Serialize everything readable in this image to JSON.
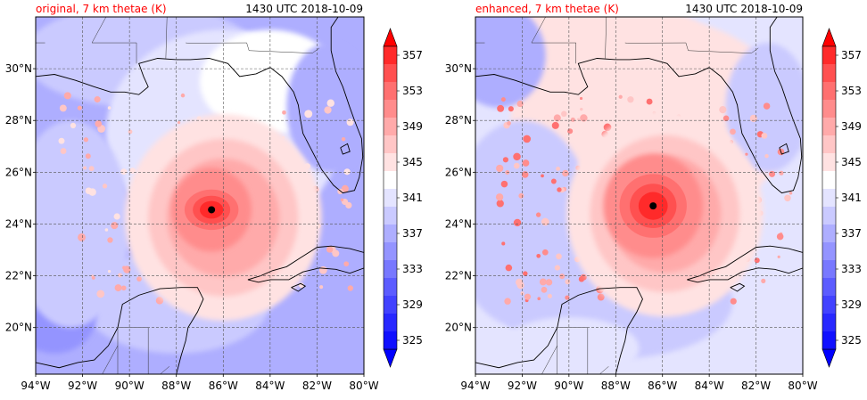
{
  "panels": [
    {
      "title_left": "original, 7 km thetae (K)",
      "title_right": "1430 UTC 2018-10-09",
      "storm_center": {
        "lon": -86.5,
        "lat": 24.55
      },
      "core_scale": 1.0,
      "core_shape": "elongated"
    },
    {
      "title_left": "enhanced, 7 km thetae (K)",
      "title_right": "1430 UTC 2018-10-09",
      "storm_center": {
        "lon": -86.4,
        "lat": 24.7
      },
      "core_scale": 1.25,
      "core_shape": "round"
    }
  ],
  "lon_ticks": [
    {
      "value": -94,
      "label": "94°W"
    },
    {
      "value": -92,
      "label": "92°W"
    },
    {
      "value": -90,
      "label": "90°W"
    },
    {
      "value": -88,
      "label": "88°W"
    },
    {
      "value": -86,
      "label": "86°W"
    },
    {
      "value": -84,
      "label": "84°W"
    },
    {
      "value": -82,
      "label": "82°W"
    },
    {
      "value": -80,
      "label": "80°W"
    }
  ],
  "lat_ticks": [
    {
      "value": 20,
      "label": "20°N"
    },
    {
      "value": 22,
      "label": "22°N"
    },
    {
      "value": 24,
      "label": "24°N"
    },
    {
      "value": 26,
      "label": "26°N"
    },
    {
      "value": 28,
      "label": "28°N"
    },
    {
      "value": 30,
      "label": "30°N"
    }
  ],
  "extent": {
    "lon": [
      -94,
      -80
    ],
    "lat": [
      18.2,
      32
    ]
  },
  "colorbar": {
    "range": [
      325,
      359
    ],
    "tick_labels": [
      "325",
      "329",
      "333",
      "337",
      "341",
      "345",
      "349",
      "353",
      "357"
    ],
    "tick_values": [
      325,
      329,
      333,
      337,
      341,
      345,
      349,
      353,
      357
    ],
    "levels": [
      {
        "lo": 325,
        "hi": 327,
        "color": "#1010ff"
      },
      {
        "lo": 327,
        "hi": 329,
        "color": "#2828ff"
      },
      {
        "lo": 329,
        "hi": 331,
        "color": "#4242ff"
      },
      {
        "lo": 331,
        "hi": 333,
        "color": "#5c5cff"
      },
      {
        "lo": 333,
        "hi": 335,
        "color": "#7878ff"
      },
      {
        "lo": 335,
        "hi": 337,
        "color": "#9494ff"
      },
      {
        "lo": 337,
        "hi": 339,
        "color": "#aeaeff"
      },
      {
        "lo": 339,
        "hi": 341,
        "color": "#cacaff"
      },
      {
        "lo": 341,
        "hi": 343,
        "color": "#e4e4ff"
      },
      {
        "lo": 343,
        "hi": 345,
        "color": "#ffffff"
      },
      {
        "lo": 345,
        "hi": 347,
        "color": "#ffe2e2"
      },
      {
        "lo": 347,
        "hi": 349,
        "color": "#ffc6c6"
      },
      {
        "lo": 349,
        "hi": 351,
        "color": "#ffaaaa"
      },
      {
        "lo": 351,
        "hi": 353,
        "color": "#ff8c8c"
      },
      {
        "lo": 353,
        "hi": 355,
        "color": "#ff7070"
      },
      {
        "lo": 355,
        "hi": 357,
        "color": "#ff5050"
      },
      {
        "lo": 357,
        "hi": 359,
        "color": "#ff2a2a"
      }
    ],
    "under_color": "#0000ff",
    "over_color": "#ff0000"
  },
  "colors": {
    "title_left": "#ff0000",
    "title_right": "#000000",
    "coast": "#000000",
    "grid": "#555555",
    "storm_marker": "#000000"
  }
}
